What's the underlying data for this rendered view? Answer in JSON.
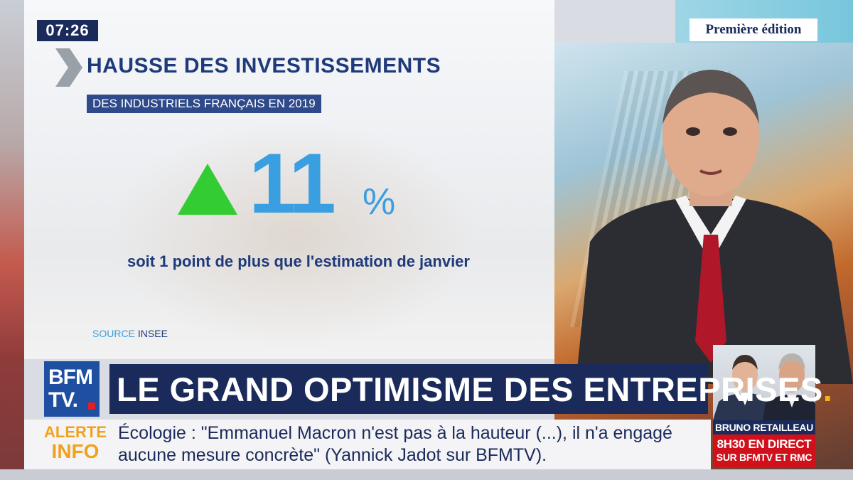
{
  "clock": {
    "time": "07:26"
  },
  "edition_label": "Première édition",
  "infographic": {
    "title": "HAUSSE DES INVESTISSEMENTS",
    "subtitle": "DES INDUSTRIELS FRANÇAIS EN 2019",
    "value": "11",
    "unit": "%",
    "trend_icon": "up-triangle-icon",
    "note": "soit 1 point de plus que l'estimation de janvier",
    "source_label": "SOURCE",
    "source_value": "INSEE"
  },
  "channel": {
    "logo_line1": "BFM",
    "logo_line2": "TV."
  },
  "banner": {
    "headline": "LE GRAND OPTIMISME DES ENTREPRISES",
    "dot": "."
  },
  "ticker": {
    "label_line1": "ALERTE",
    "label_line2": "INFO",
    "text": "Écologie : \"Emmanuel Macron n'est pas à la hauteur (...), il n'a engagé aucune mesure concrète\" (Yannick Jadot sur BFMTV)."
  },
  "guest_promo": {
    "name": "BRUNO RETAILLEAU",
    "time_line": "8H30 EN DIRECT",
    "channel_line": "SUR BFMTV ET RMC"
  },
  "colors": {
    "navy": "#1a2a5a",
    "accent_blue": "#3a9fe0",
    "green_up": "#33cc33",
    "alert_orange": "#f2a11c",
    "promo_red": "#d0101b"
  }
}
